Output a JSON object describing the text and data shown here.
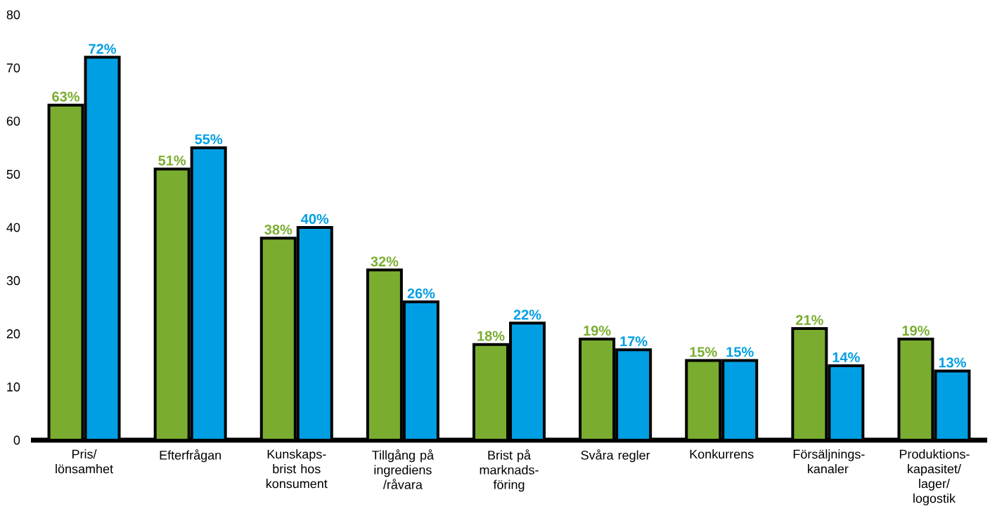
{
  "chart_data": {
    "type": "bar",
    "categories": [
      "Pris/ lönsamhet",
      "Efterfrågan",
      "Kunskaps-brist hos konsument",
      "Tillgång på ingrediens /råvara",
      "Brist på marknads-föring",
      "Svåra regler",
      "Konkurrens",
      "Försäljnings-kanaler",
      "Produktions-kapasitet/ lager/ logostik"
    ],
    "series": [
      {
        "color": "#7aad2f",
        "values": [
          63,
          51,
          38,
          32,
          18,
          19,
          15,
          21,
          19
        ],
        "value_labels": [
          "63%",
          "51%",
          "38%",
          "32%",
          "18%",
          "19%",
          "15%",
          "21%",
          "19%"
        ]
      },
      {
        "color": "#009fe3",
        "values": [
          72,
          55,
          40,
          26,
          22,
          17,
          15,
          14,
          13
        ],
        "value_labels": [
          "72%",
          "55%",
          "40%",
          "26%",
          "22%",
          "17%",
          "15%",
          "14%",
          "13%"
        ]
      }
    ],
    "ylim": [
      0,
      80
    ],
    "yticks": [
      0,
      10,
      20,
      30,
      40,
      50,
      60,
      70,
      80
    ]
  }
}
